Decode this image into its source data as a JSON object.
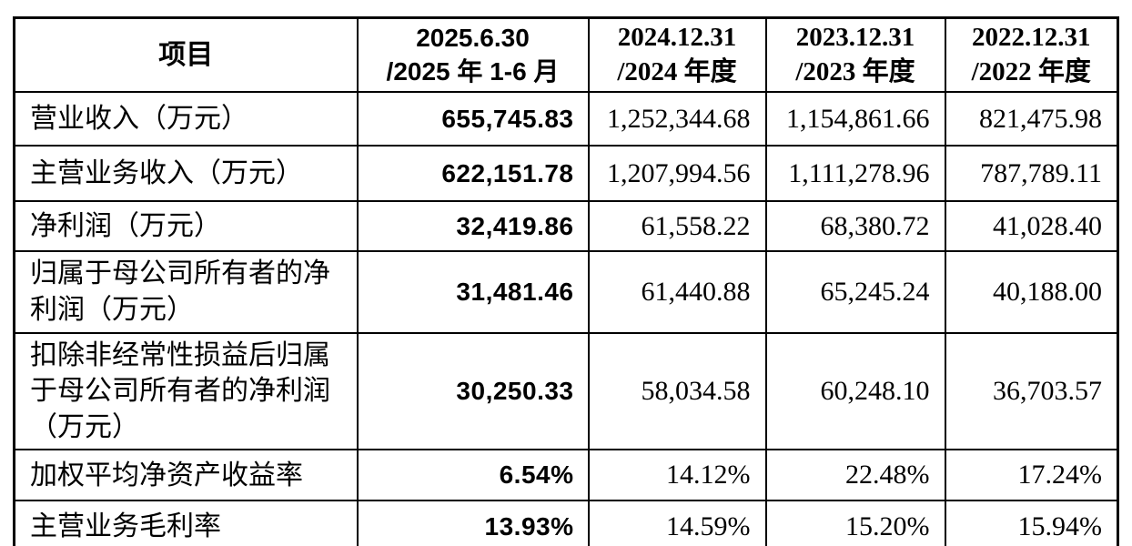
{
  "table": {
    "headers": {
      "item_label": "项目",
      "periods": [
        {
          "line1": "2025.6.30",
          "line2": "/2025 年 1-6 月"
        },
        {
          "line1": "2024.12.31",
          "line2": "/2024 年度"
        },
        {
          "line1": "2023.12.31",
          "line2": "/2023 年度"
        },
        {
          "line1": "2022.12.31",
          "line2": "/2022 年度"
        }
      ]
    },
    "rows": [
      {
        "label": "营业收入（万元）",
        "values": [
          "655,745.83",
          "1,252,344.68",
          "1,154,861.66",
          "821,475.98"
        ]
      },
      {
        "label": "主营业务收入（万元）",
        "values": [
          "622,151.78",
          "1,207,994.56",
          "1,111,278.96",
          "787,789.11"
        ]
      },
      {
        "label": "净利润（万元）",
        "values": [
          "32,419.86",
          "61,558.22",
          "68,380.72",
          "41,028.40"
        ]
      },
      {
        "label": "归属于母公司所有者的净利润（万元）",
        "values": [
          "31,481.46",
          "61,440.88",
          "65,245.24",
          "40,188.00"
        ]
      },
      {
        "label": "扣除非经常性损益后归属于母公司所有者的净利润（万元）",
        "values": [
          "30,250.33",
          "58,034.58",
          "60,248.10",
          "36,703.57"
        ]
      },
      {
        "label": "加权平均净资产收益率",
        "values": [
          "6.54%",
          "14.12%",
          "22.48%",
          "17.24%"
        ]
      },
      {
        "label": "主营业务毛利率",
        "values": [
          "13.93%",
          "14.59%",
          "15.20%",
          "15.94%"
        ]
      }
    ]
  },
  "colors": {
    "border": "#000000",
    "text": "#000000",
    "background": "#ffffff"
  }
}
